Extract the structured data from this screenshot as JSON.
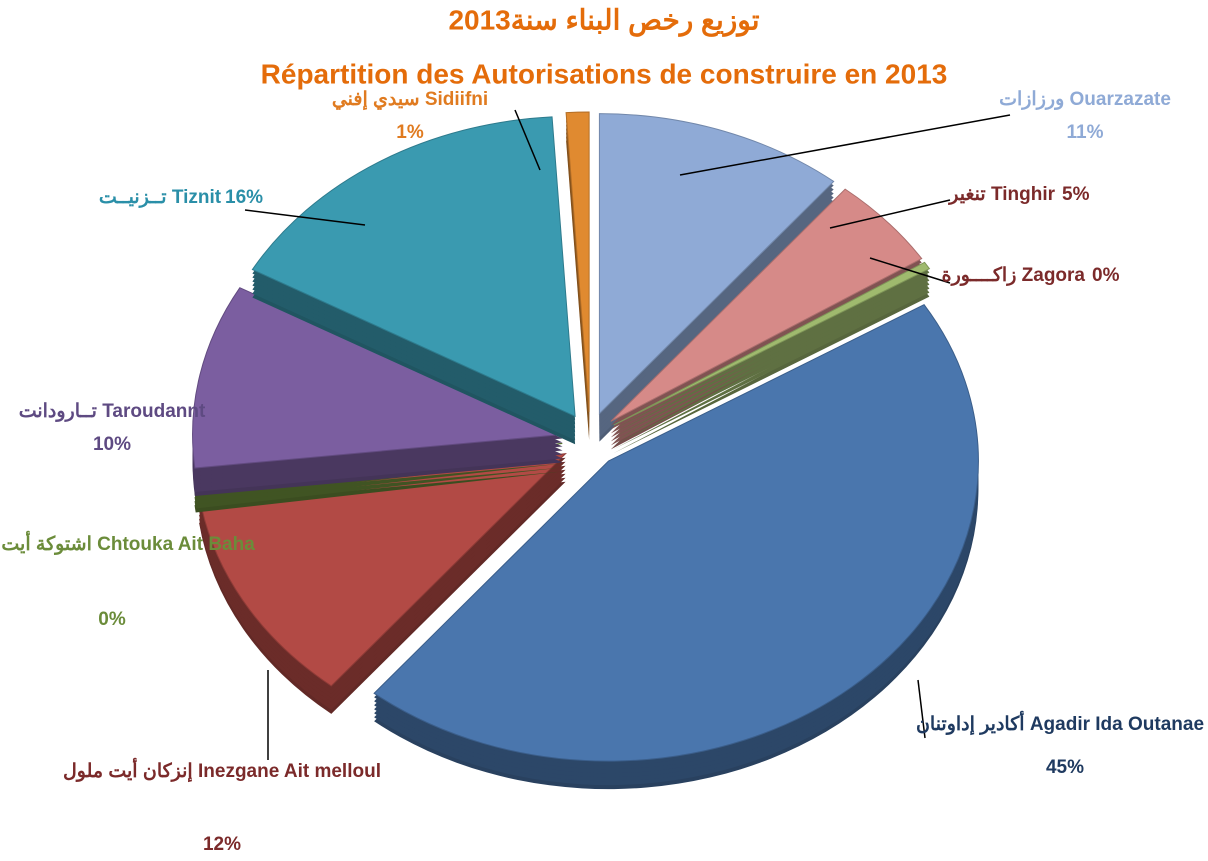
{
  "chart_data": {
    "type": "pie",
    "title": "توزيع رخص البناء سنة2013",
    "subtitle": "Répartition des Autorisations de construire en 2013",
    "categories": [
      "ورزازات Ouarzazate",
      "تنغير Tinghir",
      "زاكــــورة Zagora",
      "أكادير إداوتنان Agadir Ida Outanae",
      "إنزكان أيت ملول Inezgane Ait melloul",
      "اشتوكة أيت باها Chtouka Ait Baha",
      "تــارودانت Taroudannt",
      "تــزنيــت Tiznit",
      "سيدي إفني Sidiifni"
    ],
    "values": [
      11,
      5,
      0.4,
      45,
      12,
      0.4,
      10,
      16,
      1
    ],
    "value_labels": [
      "11%",
      "5%",
      "0%",
      "45%",
      "12%",
      "0%",
      "10%",
      "16%",
      "1%"
    ],
    "colors": [
      "#8faad6",
      "#d68a88",
      "#9fba6e",
      "#4a76ad",
      "#b24a45",
      "#6b8c3a",
      "#7b5ea0",
      "#3a9ab0",
      "#e08a30"
    ]
  }
}
